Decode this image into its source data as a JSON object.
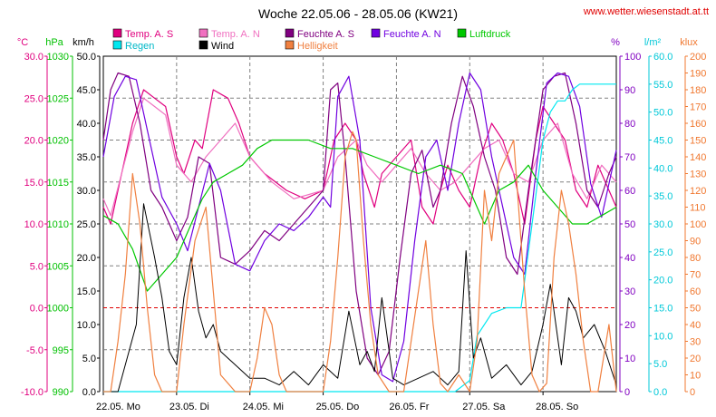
{
  "chart_data": {
    "type": "line",
    "title": "Woche 22.05.06 - 28.05.06 (KW21)",
    "source": "www.wetter.wiesenstadt.at.tt",
    "x_ticks": [
      "22.05. Mo",
      "23.05. Di",
      "24.05. Mi",
      "25.05. Do",
      "26.05. Fr",
      "27.05. Sa",
      "28.05. So"
    ],
    "x_range_days": [
      0,
      7
    ],
    "grid": true,
    "axes": [
      {
        "side": "left",
        "unit": "°C",
        "color": "#e0007f",
        "min": -10,
        "max": 30,
        "ticks": [
          "30.0",
          "25.0",
          "20.0",
          "15.0",
          "10.0",
          "5.0",
          "0.0",
          "-5.0",
          "-10.0"
        ]
      },
      {
        "side": "left",
        "unit": "hPa",
        "color": "#00c000",
        "min": 990,
        "max": 1030,
        "ticks": [
          "1030",
          "1025",
          "1020",
          "1015",
          "1010",
          "1005",
          "1000",
          "995",
          "990"
        ]
      },
      {
        "side": "left",
        "unit": "km/h",
        "color": "#000000",
        "min": 0,
        "max": 50,
        "ticks": [
          "50.0",
          "45.0",
          "40.0",
          "35.0",
          "30.0",
          "25.0",
          "20.0",
          "15.0",
          "10.0",
          "5.0",
          "0.0"
        ]
      },
      {
        "side": "right",
        "unit": "%",
        "color": "#8000c0",
        "min": 0,
        "max": 100,
        "ticks": [
          "100",
          "90",
          "80",
          "70",
          "60",
          "50",
          "40",
          "30",
          "20",
          "10",
          "0"
        ]
      },
      {
        "side": "right",
        "unit": "l/m²",
        "color": "#00c8d8",
        "min": 0,
        "max": 60,
        "ticks": [
          "60.0",
          "55.0",
          "50.0",
          "45.0",
          "40.0",
          "35.0",
          "30.0",
          "25.0",
          "20.0",
          "15.0",
          "10.0",
          "5.0",
          "0.0"
        ]
      },
      {
        "side": "right",
        "unit": "klux",
        "color": "#f07830",
        "min": 0,
        "max": 200,
        "ticks": [
          "200",
          "190",
          "180",
          "170",
          "160",
          "150",
          "140",
          "130",
          "120",
          "110",
          "100",
          "90",
          "80",
          "70",
          "60",
          "50",
          "40",
          "30",
          "20",
          "10",
          "0"
        ]
      }
    ],
    "legend": [
      {
        "name": "Temp. A. S",
        "color": "#e0007f"
      },
      {
        "name": "Temp. A. N",
        "color": "#f070c0"
      },
      {
        "name": "Feuchte A. S",
        "color": "#800080"
      },
      {
        "name": "Feuchte A. N",
        "color": "#7000e0"
      },
      {
        "name": "Luftdruck",
        "color": "#00c800"
      },
      {
        "name": "Regen",
        "color": "#00e8f0"
      },
      {
        "name": "Wind",
        "color": "#000000"
      },
      {
        "name": "Helligkeit",
        "color": "#f08040"
      }
    ],
    "series": [
      {
        "name": "Temp. A. S",
        "axis": "°C",
        "x": [
          0,
          0.1,
          0.25,
          0.4,
          0.55,
          0.7,
          0.85,
          1.0,
          1.1,
          1.25,
          1.35,
          1.5,
          1.7,
          1.85,
          2.0,
          2.2,
          2.5,
          2.75,
          3.0,
          3.15,
          3.3,
          3.45,
          3.55,
          3.7,
          3.8,
          4.0,
          4.2,
          4.35,
          4.5,
          4.6,
          4.7,
          4.85,
          5.0,
          5.15,
          5.3,
          5.45,
          5.6,
          5.75,
          5.9,
          6.0,
          6.15,
          6.3,
          6.45,
          6.6,
          6.75,
          6.9,
          7.0
        ],
        "y": [
          12,
          10,
          16,
          22,
          26,
          25,
          24,
          18,
          16,
          20,
          19,
          26,
          25,
          22,
          18,
          16,
          14,
          13,
          14,
          20,
          22,
          20,
          16,
          12,
          16,
          18,
          20,
          12,
          10,
          14,
          17,
          14,
          12,
          18,
          22,
          20,
          16,
          10,
          20,
          24,
          22,
          20,
          14,
          12,
          17,
          14,
          12
        ]
      },
      {
        "name": "Temp. A. N",
        "axis": "°C",
        "x": [
          0,
          0.1,
          0.25,
          0.4,
          0.55,
          0.7,
          0.85,
          1.0,
          1.2,
          1.4,
          1.6,
          1.8,
          2.0,
          2.3,
          2.6,
          3.0,
          3.2,
          3.45,
          3.6,
          3.8,
          4.0,
          4.2,
          4.4,
          4.6,
          4.8,
          5.0,
          5.2,
          5.4,
          5.6,
          5.8,
          6.0,
          6.2,
          6.4,
          6.6,
          6.8,
          7.0
        ],
        "y": [
          13,
          11,
          16,
          21,
          25,
          24,
          23,
          17,
          15,
          18,
          20,
          22,
          18,
          15,
          13,
          14,
          18,
          20,
          17,
          15,
          17,
          19,
          16,
          14,
          15,
          17,
          19,
          20,
          16,
          15,
          20,
          22,
          16,
          13,
          17,
          15
        ]
      },
      {
        "name": "Feuchte A. S",
        "axis": "%",
        "x": [
          0,
          0.1,
          0.2,
          0.35,
          0.5,
          0.65,
          0.8,
          1.0,
          1.15,
          1.3,
          1.45,
          1.6,
          1.8,
          2.0,
          2.2,
          2.4,
          2.6,
          2.8,
          3.0,
          3.1,
          3.2,
          3.3,
          3.45,
          3.6,
          3.75,
          3.9,
          4.05,
          4.2,
          4.35,
          4.5,
          4.6,
          4.75,
          4.9,
          5.05,
          5.2,
          5.35,
          5.5,
          5.65,
          5.8,
          6.0,
          6.15,
          6.3,
          6.45,
          6.6,
          6.75,
          6.9,
          7.0
        ],
        "y": [
          75,
          90,
          95,
          94,
          80,
          60,
          55,
          45,
          52,
          70,
          68,
          40,
          38,
          42,
          48,
          45,
          50,
          55,
          60,
          90,
          92,
          70,
          30,
          10,
          5,
          12,
          40,
          65,
          72,
          55,
          60,
          80,
          94,
          85,
          70,
          60,
          40,
          35,
          60,
          90,
          94,
          95,
          80,
          60,
          55,
          65,
          70
        ]
      },
      {
        "name": "Feuchte A. N",
        "axis": "%",
        "x": [
          0,
          0.15,
          0.3,
          0.45,
          0.6,
          0.8,
          1.0,
          1.15,
          1.3,
          1.45,
          1.6,
          1.8,
          2.0,
          2.2,
          2.4,
          2.6,
          2.8,
          3.0,
          3.1,
          3.2,
          3.35,
          3.5,
          3.65,
          3.8,
          3.95,
          4.1,
          4.25,
          4.4,
          4.55,
          4.7,
          4.85,
          5.0,
          5.15,
          5.3,
          5.45,
          5.6,
          5.75,
          5.9,
          6.05,
          6.2,
          6.35,
          6.5,
          6.65,
          6.8,
          7.0
        ],
        "y": [
          70,
          88,
          94,
          93,
          78,
          58,
          50,
          42,
          55,
          68,
          60,
          38,
          36,
          45,
          50,
          48,
          52,
          58,
          55,
          88,
          94,
          75,
          25,
          5,
          3,
          15,
          45,
          70,
          75,
          60,
          80,
          95,
          90,
          70,
          55,
          40,
          35,
          65,
          92,
          95,
          94,
          85,
          62,
          52,
          72
        ]
      },
      {
        "name": "Luftdruck",
        "axis": "hPa",
        "x": [
          0,
          0.2,
          0.4,
          0.6,
          0.8,
          1.0,
          1.2,
          1.35,
          1.5,
          1.7,
          1.9,
          2.1,
          2.3,
          2.5,
          2.8,
          3.1,
          3.4,
          3.7,
          4.0,
          4.3,
          4.6,
          4.9,
          5.0,
          5.2,
          5.4,
          5.6,
          5.8,
          6.0,
          6.2,
          6.4,
          6.6,
          6.8,
          7.0
        ],
        "y": [
          1011,
          1010,
          1007,
          1002,
          1004,
          1006,
          1010,
          1013,
          1015,
          1016,
          1017,
          1019,
          1020,
          1020,
          1020,
          1019,
          1019,
          1018,
          1017,
          1016,
          1017,
          1016,
          1014,
          1010,
          1014,
          1015,
          1017,
          1014,
          1012,
          1010,
          1010,
          1011,
          1012
        ]
      },
      {
        "name": "Regen",
        "axis": "l/m²",
        "x": [
          0,
          4.8,
          5.0,
          5.1,
          5.3,
          5.5,
          5.55,
          5.7,
          5.8,
          5.9,
          6.0,
          6.1,
          6.2,
          6.3,
          6.4,
          6.5,
          6.6,
          7.0
        ],
        "y": [
          0,
          0,
          2,
          10,
          14,
          15,
          15,
          15,
          25,
          35,
          45,
          50,
          52,
          52,
          54,
          55,
          55,
          55
        ]
      },
      {
        "name": "Wind",
        "axis": "km/h",
        "x": [
          0,
          0.2,
          0.35,
          0.45,
          0.55,
          0.7,
          0.8,
          0.9,
          1.0,
          1.1,
          1.2,
          1.3,
          1.4,
          1.5,
          1.6,
          1.8,
          2.0,
          2.2,
          2.4,
          2.6,
          2.8,
          3.0,
          3.2,
          3.35,
          3.5,
          3.6,
          3.7,
          3.8,
          3.95,
          4.1,
          4.3,
          4.5,
          4.7,
          4.85,
          4.95,
          5.05,
          5.15,
          5.3,
          5.5,
          5.7,
          5.85,
          6.0,
          6.1,
          6.25,
          6.35,
          6.45,
          6.55,
          6.7,
          6.85,
          7.0
        ],
        "y": [
          0,
          0,
          6,
          10,
          28,
          20,
          14,
          6,
          4,
          14,
          20,
          12,
          8,
          10,
          6,
          4,
          2,
          2,
          1,
          3,
          1,
          4,
          2,
          12,
          4,
          6,
          3,
          14,
          2,
          1,
          2,
          3,
          1,
          3,
          21,
          5,
          8,
          2,
          4,
          1,
          3,
          10,
          16,
          4,
          14,
          12,
          8,
          10,
          6,
          1
        ]
      },
      {
        "name": "Helligkeit",
        "axis": "klux",
        "x": [
          0,
          0.1,
          0.2,
          0.3,
          0.4,
          0.5,
          0.6,
          0.7,
          0.8,
          0.9,
          1.0,
          1.1,
          1.25,
          1.4,
          1.5,
          1.6,
          1.8,
          2.0,
          2.1,
          2.2,
          2.3,
          2.4,
          2.5,
          3.0,
          3.1,
          3.2,
          3.3,
          3.4,
          3.45,
          3.55,
          3.65,
          3.75,
          3.9,
          4.0,
          4.1,
          4.3,
          4.4,
          4.5,
          4.6,
          4.7,
          4.85,
          5.0,
          5.1,
          5.2,
          5.3,
          5.4,
          5.6,
          5.75,
          5.85,
          5.95,
          6.05,
          6.15,
          6.25,
          6.35,
          6.45,
          6.55,
          6.65,
          6.75,
          6.9,
          7.0
        ],
        "y": [
          0,
          0,
          30,
          70,
          130,
          100,
          50,
          10,
          0,
          0,
          0,
          40,
          90,
          110,
          60,
          10,
          0,
          0,
          20,
          50,
          40,
          10,
          0,
          0,
          30,
          80,
          140,
          155,
          150,
          90,
          40,
          10,
          0,
          0,
          0,
          60,
          90,
          40,
          5,
          0,
          10,
          0,
          30,
          120,
          90,
          130,
          150,
          60,
          10,
          0,
          5,
          80,
          120,
          100,
          70,
          30,
          0,
          0,
          40,
          0
        ]
      }
    ]
  }
}
